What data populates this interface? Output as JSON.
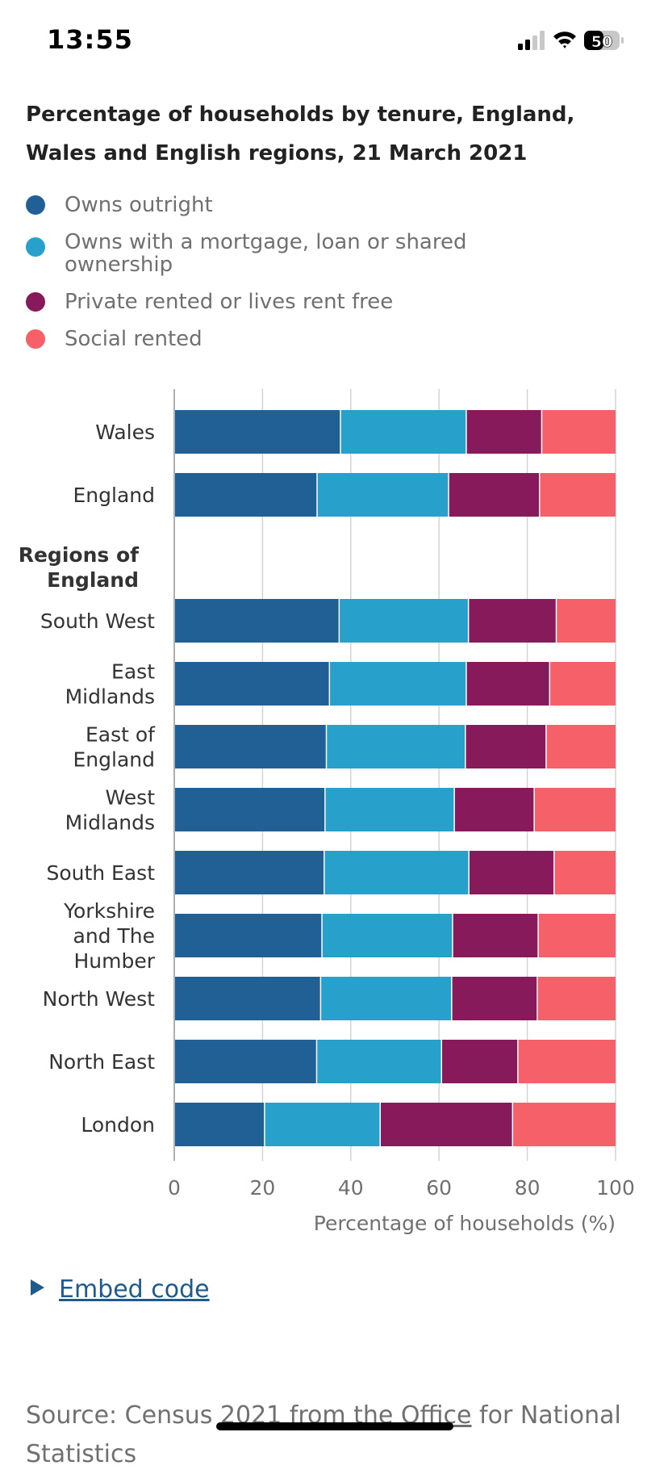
{
  "status": {
    "time": "13:55",
    "battery": "50"
  },
  "title": "Percentage of households by tenure, England, Wales and English regions, 21 March 2021",
  "legend": [
    {
      "label": "Owns outright",
      "color": "#206095"
    },
    {
      "label": "Owns with a mortgage, loan or shared ownership",
      "color": "#27a0cc"
    },
    {
      "label": "Private rented or lives rent free",
      "color": "#871a5b"
    },
    {
      "label": "Social rented",
      "color": "#f66068"
    }
  ],
  "chart_data": {
    "type": "bar",
    "orientation": "horizontal",
    "stacked": true,
    "categories": [
      "Wales",
      "England",
      "South West",
      "East Midlands",
      "East of England",
      "West Midlands",
      "South East",
      "Yorkshire and The Humber",
      "North West",
      "North East",
      "London"
    ],
    "group_heading": "Regions of England",
    "series": [
      {
        "name": "Owns outright",
        "values": [
          37.8,
          32.5,
          37.5,
          35.3,
          34.6,
          34.3,
          34.1,
          33.6,
          33.3,
          32.4,
          20.6
        ]
      },
      {
        "name": "Owns with a mortgage, loan or shared ownership",
        "values": [
          28.5,
          29.8,
          29.3,
          31.0,
          31.5,
          29.3,
          32.8,
          29.6,
          29.7,
          28.3,
          26.2
        ]
      },
      {
        "name": "Private rented or lives rent free",
        "values": [
          17.1,
          20.6,
          19.9,
          18.9,
          18.3,
          18.1,
          19.3,
          19.4,
          19.4,
          17.3,
          30.0
        ]
      },
      {
        "name": "Social rented",
        "values": [
          16.6,
          17.1,
          13.3,
          14.8,
          15.6,
          18.3,
          13.8,
          17.4,
          17.6,
          22.0,
          23.2
        ]
      }
    ],
    "xlabel": "Percentage of households (%)",
    "xlim": [
      0,
      100
    ],
    "xticks": [
      0,
      20,
      40,
      60,
      80,
      100
    ]
  },
  "embed": {
    "label": "Embed code"
  },
  "source": {
    "prefix": "Source: Census ",
    "link": "2021 from the Office",
    "suffix": " for National Statistics"
  }
}
